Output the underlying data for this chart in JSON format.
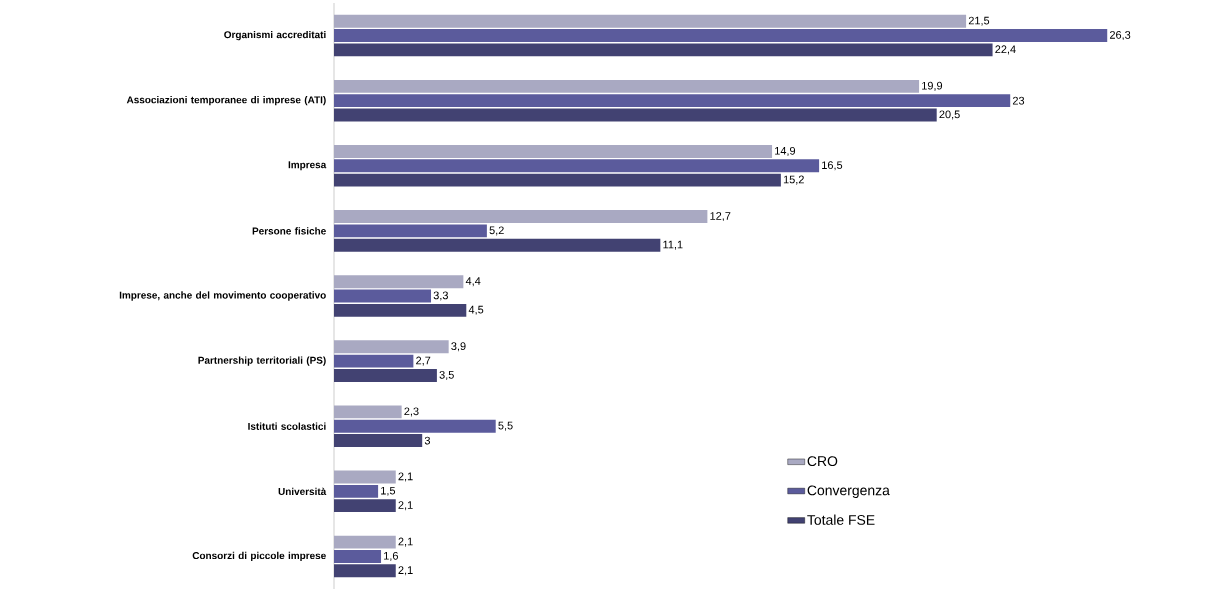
{
  "chart_data": {
    "type": "bar",
    "orientation": "horizontal",
    "legend": "bottom right",
    "categories": [
      "Organismi accreditati",
      "Associazioni temporanee di imprese (ATI)",
      "Impresa",
      "Persone fisiche",
      "Imprese, anche del movimento cooperativo",
      "Partnership territoriali (PS)",
      "Istituti scolastici",
      "Università",
      "Consorzi di piccole imprese"
    ],
    "series": [
      {
        "name": "CRO",
        "color": "#a9a9c2",
        "values": [
          21.5,
          19.9,
          14.9,
          12.7,
          4.4,
          3.9,
          2.3,
          2.1,
          2.1
        ],
        "value_labels": [
          "21,5",
          "19,9",
          "14,9",
          "12,7",
          "4,4",
          "3,9",
          "2,3",
          "2,1",
          "2,1"
        ]
      },
      {
        "name": "Convergenza",
        "color": "#5b5b9c",
        "values": [
          26.3,
          23,
          16.5,
          5.2,
          3.3,
          2.7,
          5.5,
          1.5,
          1.6
        ],
        "value_labels": [
          "26,3",
          "23",
          "16,5",
          "5,2",
          "3,3",
          "2,7",
          "5,5",
          "1,5",
          "1,6"
        ]
      },
      {
        "name": "Totale FSE",
        "color": "#424272",
        "values": [
          22.4,
          20.5,
          15.2,
          11.1,
          4.5,
          3.5,
          3,
          2.1,
          2.1
        ],
        "value_labels": [
          "22,4",
          "20,5",
          "15,2",
          "11,1",
          "4,5",
          "3,5",
          "3",
          "2,1",
          "2,1"
        ]
      }
    ]
  }
}
